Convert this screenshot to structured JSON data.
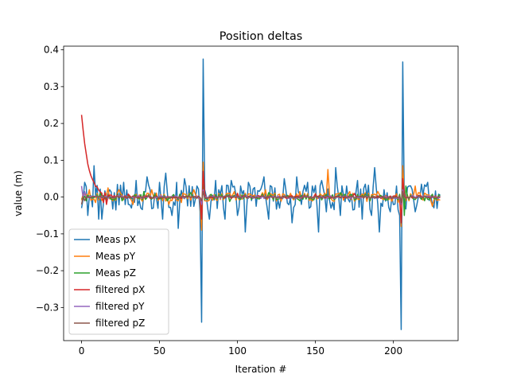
{
  "chart_data": {
    "type": "line",
    "title": "Position deltas",
    "xlabel": "Iteration #",
    "ylabel": "value (m)",
    "xlim": [
      -11.5,
      241.5
    ],
    "ylim": [
      -0.39,
      0.41
    ],
    "xticks": [
      0,
      50,
      100,
      150,
      200
    ],
    "yticks": [
      -0.3,
      -0.2,
      -0.1,
      0.0,
      0.1,
      0.2,
      0.3,
      0.4
    ],
    "ytick_labels": [
      "−0.3",
      "−0.2",
      "−0.1",
      "0.0",
      "0.1",
      "0.2",
      "0.3",
      "0.4"
    ],
    "grid": false,
    "legend_position": "lower-left",
    "x": {
      "start": 0,
      "end": 230,
      "step": 1
    },
    "series": [
      {
        "name": "Meas pX",
        "color": "#1f77b4",
        "amplitude": 0.035,
        "spikes": [
          [
            2,
            0.04
          ],
          [
            4,
            -0.05
          ],
          [
            8,
            0.085
          ],
          [
            11,
            -0.06
          ],
          [
            13,
            -0.06
          ],
          [
            18,
            0.02
          ],
          [
            22,
            -0.035
          ],
          [
            27,
            0.04
          ],
          [
            30,
            -0.02
          ],
          [
            35,
            0.045
          ],
          [
            38,
            -0.03
          ],
          [
            42,
            0.055
          ],
          [
            46,
            -0.03
          ],
          [
            50,
            0.04
          ],
          [
            52,
            -0.06
          ],
          [
            54,
            0.065
          ],
          [
            58,
            -0.05
          ],
          [
            61,
            0.04
          ],
          [
            62,
            -0.085
          ],
          [
            66,
            0.05
          ],
          [
            70,
            -0.025
          ],
          [
            74,
            0.03
          ],
          [
            76,
            -0.04
          ],
          [
            77,
            -0.34
          ],
          [
            78,
            0.375
          ],
          [
            79,
            0.02
          ],
          [
            82,
            -0.06
          ],
          [
            86,
            0.045
          ],
          [
            88,
            0.02
          ],
          [
            92,
            -0.06
          ],
          [
            96,
            0.045
          ],
          [
            100,
            -0.05
          ],
          [
            102,
            0.03
          ],
          [
            105,
            -0.095
          ],
          [
            107,
            0.04
          ],
          [
            112,
            -0.025
          ],
          [
            117,
            0.055
          ],
          [
            120,
            -0.06
          ],
          [
            124,
            0.025
          ],
          [
            127,
            -0.03
          ],
          [
            130,
            0.05
          ],
          [
            135,
            -0.07
          ],
          [
            138,
            0.055
          ],
          [
            141,
            -0.02
          ],
          [
            145,
            0.04
          ],
          [
            148,
            0.03
          ],
          [
            152,
            -0.095
          ],
          [
            154,
            0.045
          ],
          [
            157,
            -0.04
          ],
          [
            160,
            -0.03
          ],
          [
            163,
            0.08
          ],
          [
            166,
            -0.05
          ],
          [
            170,
            0.03
          ],
          [
            174,
            -0.035
          ],
          [
            177,
            0.045
          ],
          [
            180,
            -0.06
          ],
          [
            182,
            0.035
          ],
          [
            186,
            -0.05
          ],
          [
            188,
            0.08
          ],
          [
            191,
            -0.095
          ],
          [
            194,
            0.02
          ],
          [
            198,
            -0.04
          ],
          [
            202,
            0.03
          ],
          [
            204,
            -0.05
          ],
          [
            205,
            -0.36
          ],
          [
            206,
            0.367
          ],
          [
            207,
            -0.02
          ],
          [
            210,
            0.03
          ],
          [
            214,
            -0.04
          ],
          [
            218,
            0.035
          ],
          [
            222,
            0.04
          ],
          [
            225,
            -0.02
          ]
        ]
      },
      {
        "name": "Meas pY",
        "color": "#ff7f0e",
        "amplitude": 0.012,
        "spikes": [
          [
            5,
            0.02
          ],
          [
            9,
            -0.015
          ],
          [
            17,
            0.025
          ],
          [
            24,
            0.02
          ],
          [
            33,
            -0.02
          ],
          [
            45,
            0.02
          ],
          [
            56,
            -0.02
          ],
          [
            64,
            -0.015
          ],
          [
            72,
            0.02
          ],
          [
            77,
            -0.09
          ],
          [
            78,
            0.095
          ],
          [
            79,
            -0.01
          ],
          [
            98,
            0.015
          ],
          [
            118,
            0.02
          ],
          [
            140,
            0.015
          ],
          [
            156,
            0.01
          ],
          [
            158,
            0.075
          ],
          [
            161,
            -0.01
          ],
          [
            172,
            0.015
          ],
          [
            190,
            0.015
          ],
          [
            203,
            -0.015
          ],
          [
            205,
            -0.08
          ],
          [
            206,
            0.085
          ],
          [
            214,
            0.03
          ],
          [
            225,
            -0.025
          ]
        ]
      },
      {
        "name": "Meas pZ",
        "color": "#2ca02c",
        "amplitude": 0.008,
        "spikes": [
          [
            3,
            -0.01
          ],
          [
            12,
            0.012
          ],
          [
            26,
            -0.01
          ],
          [
            40,
            0.015
          ],
          [
            55,
            -0.01
          ],
          [
            70,
            0.012
          ],
          [
            77,
            -0.03
          ],
          [
            78,
            0.035
          ],
          [
            95,
            -0.012
          ],
          [
            120,
            0.012
          ],
          [
            140,
            -0.01
          ],
          [
            166,
            0.012
          ],
          [
            185,
            -0.01
          ],
          [
            205,
            -0.02
          ],
          [
            206,
            0.04
          ],
          [
            207,
            -0.05
          ],
          [
            208,
            0.03
          ],
          [
            220,
            -0.01
          ]
        ]
      },
      {
        "name": "filtered pX",
        "color": "#d62728",
        "amplitude": 0.004,
        "decay": {
          "start": 0.225,
          "rate": 0.22
        },
        "spikes": [
          [
            14,
            -0.015
          ],
          [
            16,
            -0.02
          ],
          [
            30,
            0.008
          ],
          [
            50,
            -0.005
          ],
          [
            77,
            -0.06
          ],
          [
            78,
            0.07
          ],
          [
            79,
            0.01
          ],
          [
            100,
            0.01
          ],
          [
            150,
            0.008
          ],
          [
            175,
            0.01
          ],
          [
            205,
            -0.07
          ],
          [
            206,
            0.05
          ],
          [
            207,
            0.01
          ]
        ]
      },
      {
        "name": "filtered pY",
        "color": "#9467bd",
        "amplitude": 0.004,
        "spikes": [
          [
            0,
            0.03
          ],
          [
            2,
            0.015
          ],
          [
            77,
            -0.02
          ],
          [
            78,
            0.02
          ],
          [
            205,
            -0.02
          ],
          [
            206,
            0.02
          ]
        ]
      },
      {
        "name": "filtered pZ",
        "color": "#8c564b",
        "amplitude": 0.003,
        "spikes": [
          [
            0,
            -0.02
          ],
          [
            2,
            -0.01
          ],
          [
            77,
            -0.01
          ],
          [
            78,
            0.015
          ],
          [
            205,
            -0.015
          ],
          [
            206,
            0.015
          ]
        ]
      }
    ]
  }
}
